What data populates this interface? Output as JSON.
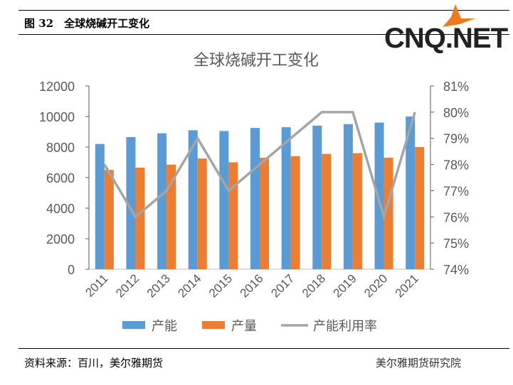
{
  "figure_label": "图 32　全球烧碱开工变化",
  "logo_text": "CNQ.NET",
  "source": "资料来源：百川，美尔雅期货",
  "watermark": "美尔雅期货研究院",
  "colors": {
    "capacity": "#5b9bd5",
    "production": "#ed7d31",
    "utilization": "#a5a5a5"
  },
  "chart_data": {
    "type": "bar",
    "title": "全球烧碱开工变化",
    "categories": [
      "2011",
      "2012",
      "2013",
      "2014",
      "2015",
      "2016",
      "2017",
      "2018",
      "2019",
      "2020",
      "2021"
    ],
    "series": [
      {
        "name": "产能",
        "axis": "left",
        "type": "bar",
        "values": [
          8200,
          8650,
          8900,
          9100,
          9050,
          9250,
          9300,
          9400,
          9500,
          9600,
          10000
        ]
      },
      {
        "name": "产量",
        "axis": "left",
        "type": "bar",
        "values": [
          6500,
          6650,
          6850,
          7250,
          7000,
          7300,
          7400,
          7550,
          7600,
          7300,
          8000
        ]
      },
      {
        "name": "产能利用率",
        "axis": "right",
        "type": "line",
        "values": [
          78,
          76,
          77,
          79,
          77,
          78,
          79,
          80,
          80,
          76,
          80
        ]
      }
    ],
    "ylim": [
      0,
      12000
    ],
    "yticks": [
      "0",
      "2000",
      "4000",
      "6000",
      "8000",
      "10000",
      "12000"
    ],
    "y2lim": [
      74,
      81
    ],
    "y2ticks": [
      "74%",
      "75%",
      "76%",
      "77%",
      "78%",
      "79%",
      "80%",
      "81%"
    ],
    "legend": "bottom",
    "grid": false
  }
}
